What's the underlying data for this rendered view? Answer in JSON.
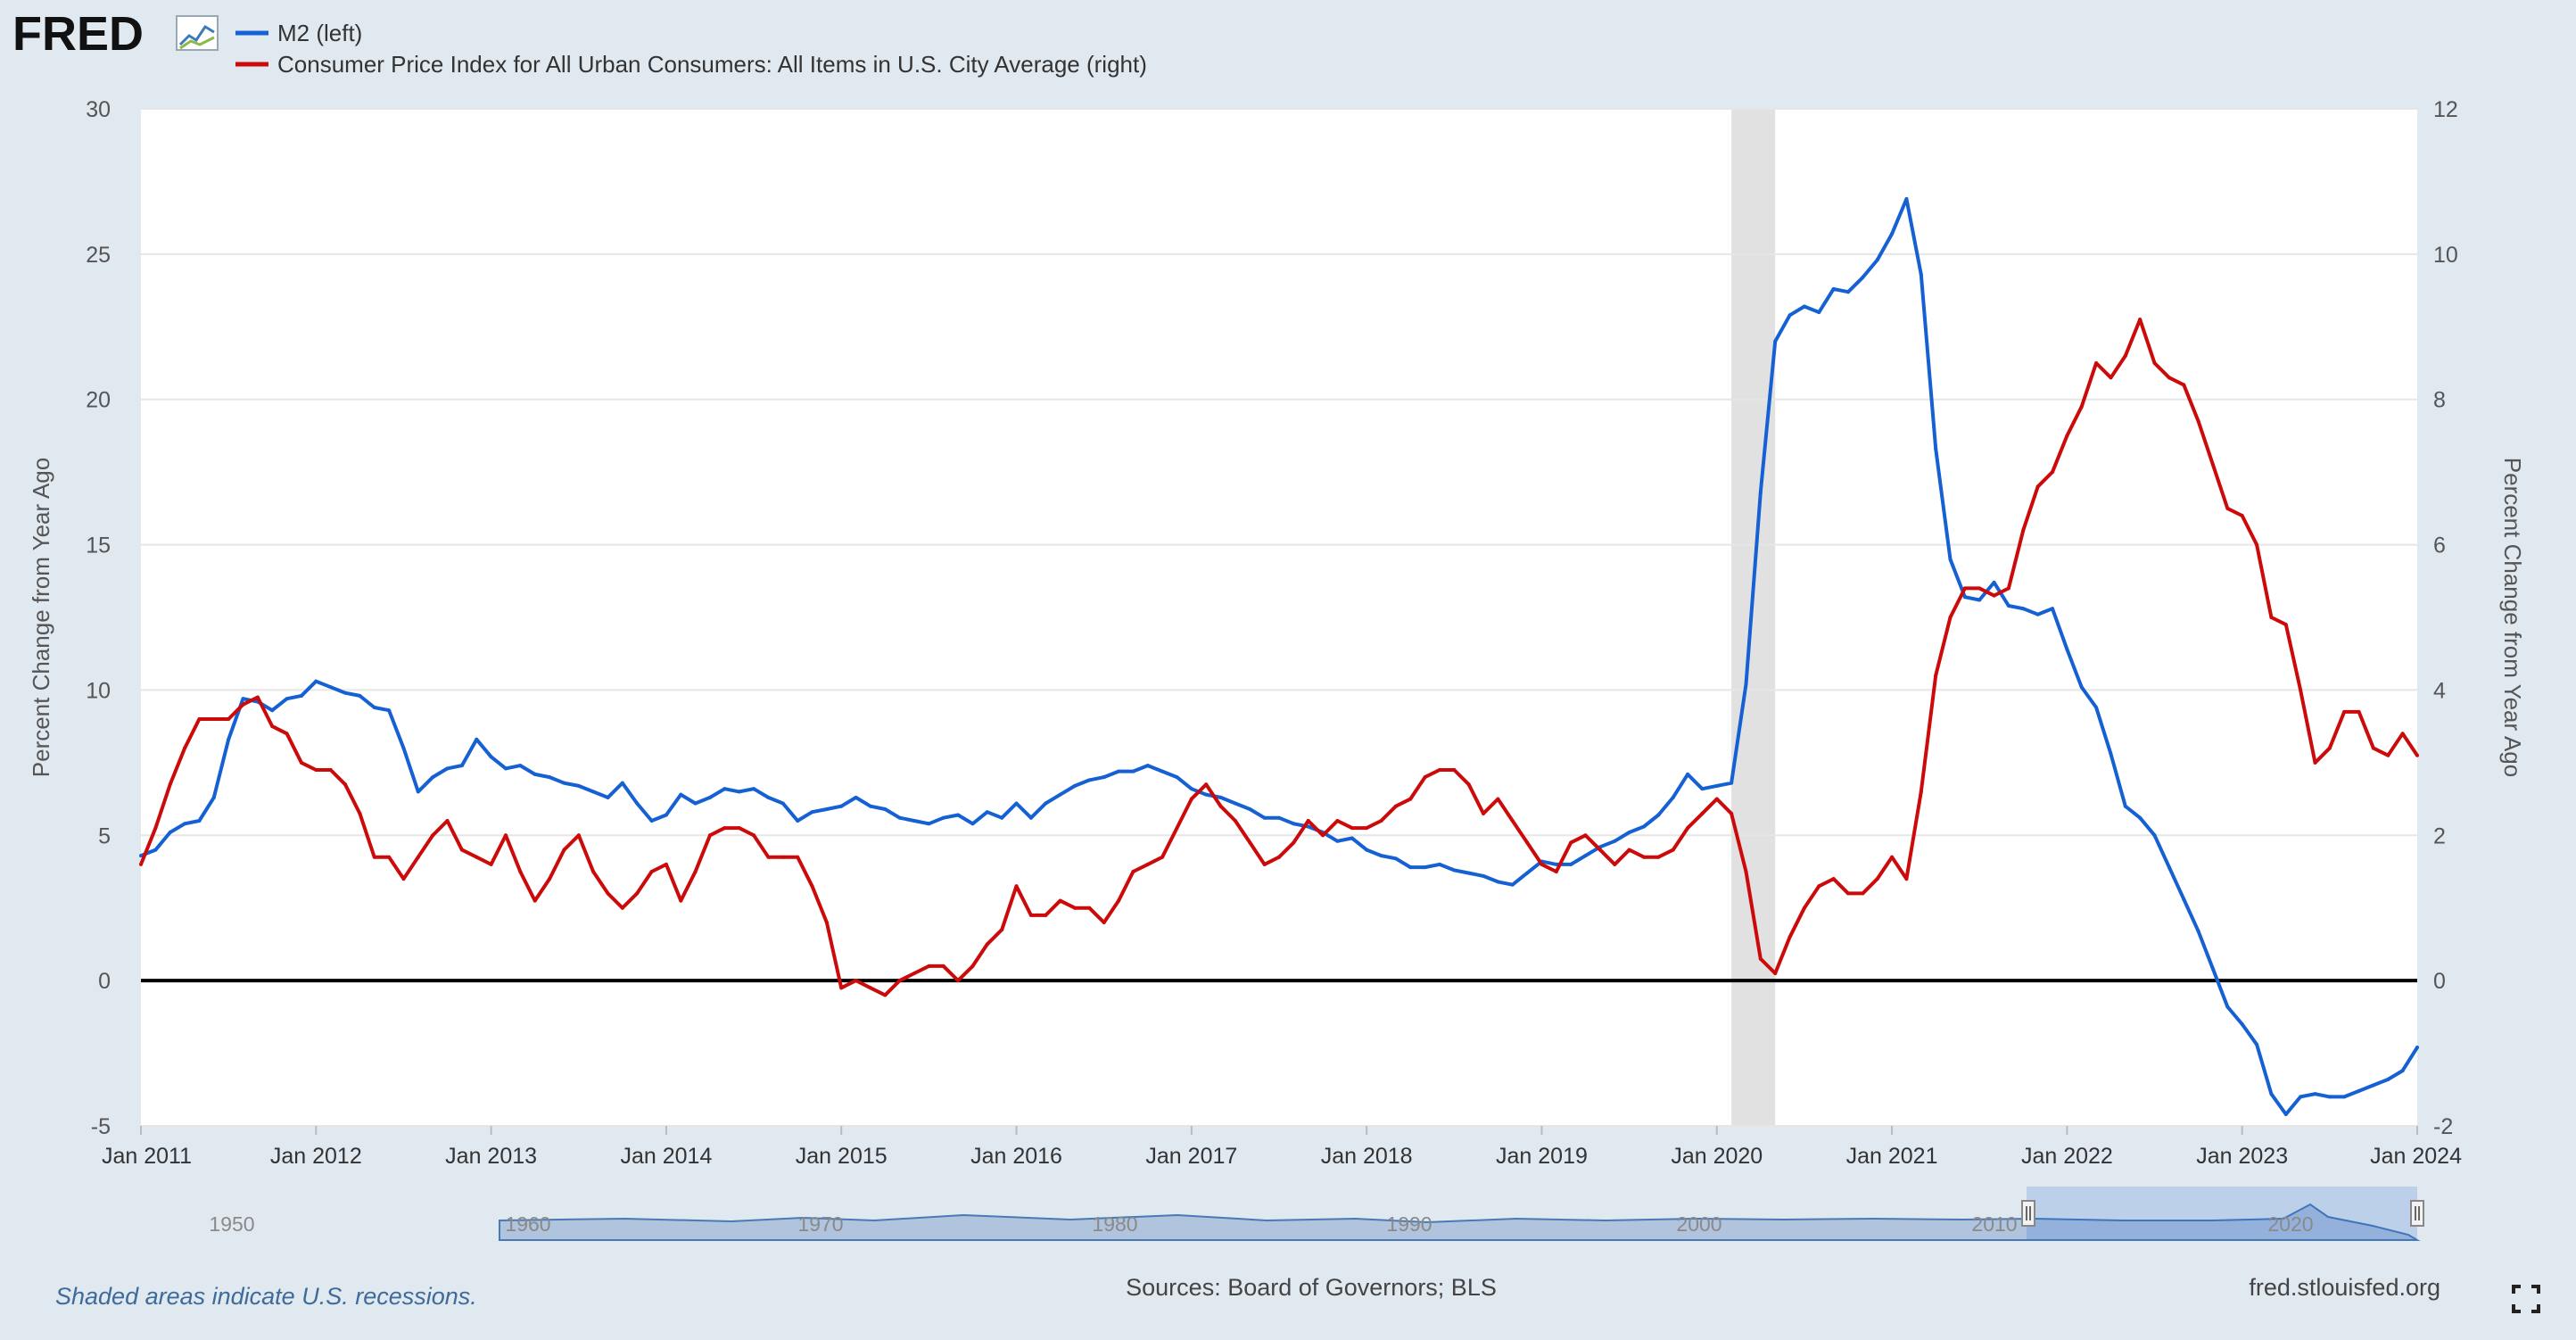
{
  "header": {
    "logo_text": "FRED",
    "legend": [
      {
        "label": "M2 (left)",
        "color": "#1560d3"
      },
      {
        "label": "Consumer Price Index for All Urban Consumers: All Items in U.S. City Average (right)",
        "color": "#cc0a0a"
      }
    ]
  },
  "footer": {
    "recession_note": "Shaded areas indicate U.S. recessions.",
    "sources": "Sources: Board of Governors; BLS",
    "site": "fred.stlouisfed.org"
  },
  "navigator": {
    "labels": [
      "1950",
      "1960",
      "1970",
      "1980",
      "1990",
      "2000",
      "2010",
      "2020"
    ]
  },
  "chart_data": {
    "type": "line",
    "grid": true,
    "y_left": {
      "label": "Percent Change from Year Ago",
      "ylim": [
        -5,
        30
      ],
      "ticks": [
        -5,
        0,
        5,
        10,
        15,
        20,
        25,
        30
      ]
    },
    "y_right": {
      "label": "Percent Change from Year Ago",
      "ylim": [
        -2,
        12
      ],
      "ticks": [
        -2,
        0,
        2,
        4,
        6,
        8,
        10,
        12
      ]
    },
    "x": {
      "range": [
        "2011-01",
        "2024-01"
      ],
      "tick_labels": [
        "Jan 2011",
        "Jan 2012",
        "Jan 2013",
        "Jan 2014",
        "Jan 2015",
        "Jan 2016",
        "Jan 2017",
        "Jan 2018",
        "Jan 2019",
        "Jan 2020",
        "Jan 2021",
        "Jan 2022",
        "Jan 2023",
        "Jan 2024"
      ]
    },
    "recessions": [
      {
        "start": "2020-02",
        "end": "2020-04"
      }
    ],
    "series": [
      {
        "name": "M2 (left)",
        "axis": "left",
        "color": "#1560d3",
        "start": "2011-01",
        "values": [
          4.3,
          4.5,
          5.1,
          5.4,
          5.5,
          6.3,
          8.3,
          9.7,
          9.6,
          9.3,
          9.7,
          9.8,
          10.3,
          10.1,
          9.9,
          9.8,
          9.4,
          9.3,
          8.0,
          6.5,
          7.0,
          7.3,
          7.4,
          8.3,
          7.7,
          7.3,
          7.4,
          7.1,
          7.0,
          6.8,
          6.7,
          6.5,
          6.3,
          6.8,
          6.1,
          5.5,
          5.7,
          6.4,
          6.1,
          6.3,
          6.6,
          6.5,
          6.6,
          6.3,
          6.1,
          5.5,
          5.8,
          5.9,
          6.0,
          6.3,
          6.0,
          5.9,
          5.6,
          5.5,
          5.4,
          5.6,
          5.7,
          5.4,
          5.8,
          5.6,
          6.1,
          5.6,
          6.1,
          6.4,
          6.7,
          6.9,
          7.0,
          7.2,
          7.2,
          7.4,
          7.2,
          7.0,
          6.6,
          6.4,
          6.3,
          6.1,
          5.9,
          5.6,
          5.6,
          5.4,
          5.3,
          5.1,
          4.8,
          4.9,
          4.5,
          4.3,
          4.2,
          3.9,
          3.9,
          4.0,
          3.8,
          3.7,
          3.6,
          3.4,
          3.3,
          3.7,
          4.1,
          4.0,
          4.0,
          4.3,
          4.6,
          4.8,
          5.1,
          5.3,
          5.7,
          6.3,
          7.1,
          6.6,
          6.7,
          6.8,
          10.2,
          16.8,
          22.0,
          22.9,
          23.2,
          23.0,
          23.8,
          23.7,
          24.2,
          24.8,
          25.7,
          26.9,
          24.3,
          18.3,
          14.5,
          13.2,
          13.1,
          13.7,
          12.9,
          12.8,
          12.6,
          12.8,
          11.4,
          10.1,
          9.4,
          7.8,
          6.0,
          5.6,
          5.0,
          3.9,
          2.8,
          1.7,
          0.4,
          -0.9,
          -1.5,
          -2.2,
          -3.9,
          -4.6,
          -4.0,
          -3.9,
          -4.0,
          -4.0,
          -3.8,
          -3.6,
          -3.4,
          -3.1,
          -2.3
        ]
      },
      {
        "name": "Consumer Price Index for All Urban Consumers: All Items in U.S. City Average (right)",
        "axis": "right",
        "color": "#cc0a0a",
        "start": "2011-01",
        "values": [
          1.6,
          2.1,
          2.7,
          3.2,
          3.6,
          3.6,
          3.6,
          3.8,
          3.9,
          3.5,
          3.4,
          3.0,
          2.9,
          2.9,
          2.7,
          2.3,
          1.7,
          1.7,
          1.4,
          1.7,
          2.0,
          2.2,
          1.8,
          1.7,
          1.6,
          2.0,
          1.5,
          1.1,
          1.4,
          1.8,
          2.0,
          1.5,
          1.2,
          1.0,
          1.2,
          1.5,
          1.6,
          1.1,
          1.5,
          2.0,
          2.1,
          2.1,
          2.0,
          1.7,
          1.7,
          1.7,
          1.3,
          0.8,
          -0.1,
          -0.0,
          -0.1,
          -0.2,
          0.0,
          0.1,
          0.2,
          0.2,
          0.0,
          0.2,
          0.5,
          0.7,
          1.3,
          0.9,
          0.9,
          1.1,
          1.0,
          1.0,
          0.8,
          1.1,
          1.5,
          1.6,
          1.7,
          2.1,
          2.5,
          2.7,
          2.4,
          2.2,
          1.9,
          1.6,
          1.7,
          1.9,
          2.2,
          2.0,
          2.2,
          2.1,
          2.1,
          2.2,
          2.4,
          2.5,
          2.8,
          2.9,
          2.9,
          2.7,
          2.3,
          2.5,
          2.2,
          1.9,
          1.6,
          1.5,
          1.9,
          2.0,
          1.8,
          1.6,
          1.8,
          1.7,
          1.7,
          1.8,
          2.1,
          2.3,
          2.5,
          2.3,
          1.5,
          0.3,
          0.1,
          0.6,
          1.0,
          1.3,
          1.4,
          1.2,
          1.2,
          1.4,
          1.7,
          1.4,
          2.6,
          4.2,
          5.0,
          5.4,
          5.4,
          5.3,
          5.4,
          6.2,
          6.8,
          7.0,
          7.5,
          7.9,
          8.5,
          8.3,
          8.6,
          9.1,
          8.5,
          8.3,
          8.2,
          7.7,
          7.1,
          6.5,
          6.4,
          6.0,
          5.0,
          4.9,
          4.0,
          3.0,
          3.2,
          3.7,
          3.7,
          3.2,
          3.1,
          3.4,
          3.1
        ]
      }
    ]
  }
}
